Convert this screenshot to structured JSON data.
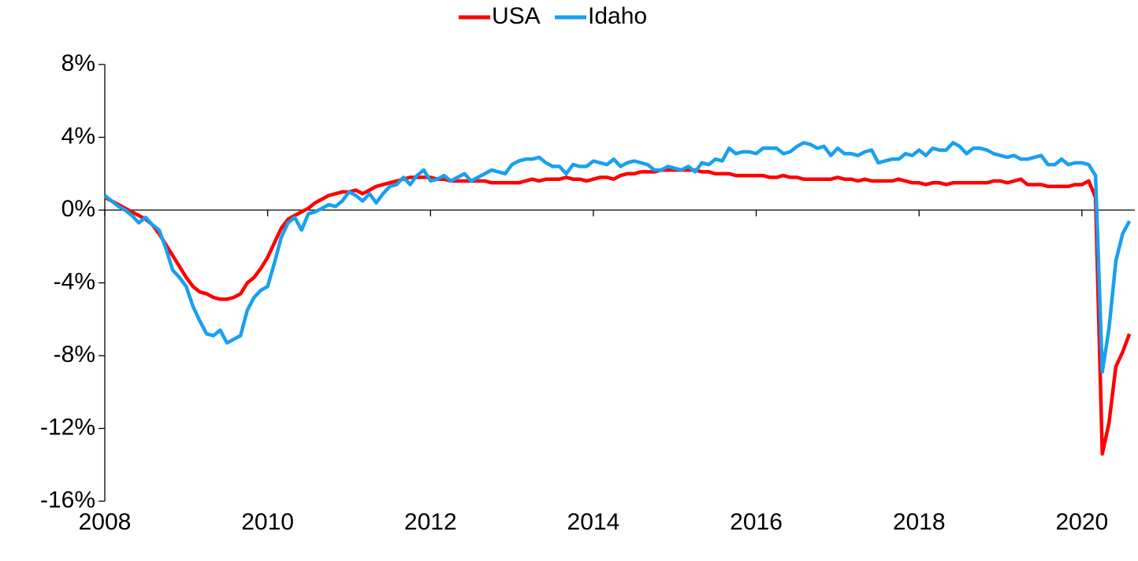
{
  "chart_data": {
    "type": "line",
    "x": [
      2008.0,
      2008.083,
      2008.167,
      2008.25,
      2008.333,
      2008.417,
      2008.5,
      2008.583,
      2008.667,
      2008.75,
      2008.833,
      2008.917,
      2009.0,
      2009.083,
      2009.167,
      2009.25,
      2009.333,
      2009.417,
      2009.5,
      2009.583,
      2009.667,
      2009.75,
      2009.833,
      2009.917,
      2010.0,
      2010.083,
      2010.167,
      2010.25,
      2010.333,
      2010.417,
      2010.5,
      2010.583,
      2010.667,
      2010.75,
      2010.833,
      2010.917,
      2011.0,
      2011.083,
      2011.167,
      2011.25,
      2011.333,
      2011.417,
      2011.5,
      2011.583,
      2011.667,
      2011.75,
      2011.833,
      2011.917,
      2012.0,
      2012.083,
      2012.167,
      2012.25,
      2012.333,
      2012.417,
      2012.5,
      2012.583,
      2012.667,
      2012.75,
      2012.833,
      2012.917,
      2013.0,
      2013.083,
      2013.167,
      2013.25,
      2013.333,
      2013.417,
      2013.5,
      2013.583,
      2013.667,
      2013.75,
      2013.833,
      2013.917,
      2014.0,
      2014.083,
      2014.167,
      2014.25,
      2014.333,
      2014.417,
      2014.5,
      2014.583,
      2014.667,
      2014.75,
      2014.833,
      2014.917,
      2015.0,
      2015.083,
      2015.167,
      2015.25,
      2015.333,
      2015.417,
      2015.5,
      2015.583,
      2015.667,
      2015.75,
      2015.833,
      2015.917,
      2016.0,
      2016.083,
      2016.167,
      2016.25,
      2016.333,
      2016.417,
      2016.5,
      2016.583,
      2016.667,
      2016.75,
      2016.833,
      2016.917,
      2017.0,
      2017.083,
      2017.167,
      2017.25,
      2017.333,
      2017.417,
      2017.5,
      2017.583,
      2017.667,
      2017.75,
      2017.833,
      2017.917,
      2018.0,
      2018.083,
      2018.167,
      2018.25,
      2018.333,
      2018.417,
      2018.5,
      2018.583,
      2018.667,
      2018.75,
      2018.833,
      2018.917,
      2019.0,
      2019.083,
      2019.167,
      2019.25,
      2019.333,
      2019.417,
      2019.5,
      2019.583,
      2019.667,
      2019.75,
      2019.833,
      2019.917,
      2020.0,
      2020.083,
      2020.167,
      2020.25,
      2020.333,
      2020.417,
      2020.5,
      2020.583
    ],
    "series": [
      {
        "name": "USA",
        "color": "#ff0000",
        "values": [
          0.7,
          0.5,
          0.3,
          0.1,
          -0.1,
          -0.3,
          -0.5,
          -0.8,
          -1.3,
          -1.9,
          -2.5,
          -3.1,
          -3.7,
          -4.2,
          -4.5,
          -4.6,
          -4.8,
          -4.9,
          -4.9,
          -4.8,
          -4.6,
          -4.0,
          -3.7,
          -3.2,
          -2.6,
          -1.8,
          -1.0,
          -0.5,
          -0.3,
          -0.1,
          0.1,
          0.4,
          0.6,
          0.8,
          0.9,
          1.0,
          1.0,
          1.1,
          0.9,
          1.1,
          1.3,
          1.4,
          1.5,
          1.6,
          1.7,
          1.8,
          1.8,
          1.8,
          1.8,
          1.7,
          1.7,
          1.6,
          1.6,
          1.6,
          1.6,
          1.6,
          1.6,
          1.5,
          1.5,
          1.5,
          1.5,
          1.5,
          1.6,
          1.7,
          1.6,
          1.7,
          1.7,
          1.7,
          1.8,
          1.7,
          1.7,
          1.6,
          1.7,
          1.8,
          1.8,
          1.7,
          1.9,
          2.0,
          2.0,
          2.1,
          2.1,
          2.1,
          2.2,
          2.2,
          2.2,
          2.2,
          2.2,
          2.2,
          2.1,
          2.1,
          2.0,
          2.0,
          2.0,
          1.9,
          1.9,
          1.9,
          1.9,
          1.9,
          1.8,
          1.8,
          1.9,
          1.8,
          1.8,
          1.7,
          1.7,
          1.7,
          1.7,
          1.7,
          1.8,
          1.7,
          1.7,
          1.6,
          1.7,
          1.6,
          1.6,
          1.6,
          1.6,
          1.7,
          1.6,
          1.5,
          1.5,
          1.4,
          1.5,
          1.5,
          1.4,
          1.5,
          1.5,
          1.5,
          1.5,
          1.5,
          1.5,
          1.6,
          1.6,
          1.5,
          1.6,
          1.7,
          1.4,
          1.4,
          1.4,
          1.3,
          1.3,
          1.3,
          1.3,
          1.4,
          1.4,
          1.6,
          0.7,
          -13.4,
          -11.7,
          -8.6,
          -7.8,
          -6.8
        ]
      },
      {
        "name": "Idaho",
        "color": "#18a0f0",
        "values": [
          0.8,
          0.5,
          0.2,
          0.0,
          -0.3,
          -0.7,
          -0.4,
          -0.8,
          -1.1,
          -2.1,
          -3.3,
          -3.7,
          -4.2,
          -5.3,
          -6.1,
          -6.8,
          -6.9,
          -6.6,
          -7.3,
          -7.1,
          -6.9,
          -5.5,
          -4.8,
          -4.4,
          -4.2,
          -2.9,
          -1.5,
          -0.7,
          -0.4,
          -1.1,
          -0.2,
          -0.1,
          0.1,
          0.3,
          0.2,
          0.5,
          1.0,
          0.8,
          0.5,
          0.9,
          0.4,
          0.9,
          1.3,
          1.4,
          1.8,
          1.4,
          1.9,
          2.2,
          1.6,
          1.7,
          1.9,
          1.6,
          1.8,
          2.0,
          1.6,
          1.8,
          2.0,
          2.2,
          2.1,
          2.0,
          2.5,
          2.7,
          2.8,
          2.8,
          2.9,
          2.6,
          2.4,
          2.4,
          2.0,
          2.5,
          2.4,
          2.4,
          2.7,
          2.6,
          2.5,
          2.8,
          2.4,
          2.6,
          2.7,
          2.6,
          2.5,
          2.2,
          2.2,
          2.4,
          2.3,
          2.2,
          2.4,
          2.1,
          2.6,
          2.5,
          2.8,
          2.7,
          3.4,
          3.1,
          3.2,
          3.2,
          3.1,
          3.4,
          3.4,
          3.4,
          3.1,
          3.2,
          3.5,
          3.7,
          3.6,
          3.4,
          3.5,
          3.0,
          3.4,
          3.1,
          3.1,
          3.0,
          3.2,
          3.3,
          2.6,
          2.7,
          2.8,
          2.8,
          3.1,
          3.0,
          3.3,
          3.0,
          3.4,
          3.3,
          3.3,
          3.7,
          3.5,
          3.1,
          3.4,
          3.4,
          3.3,
          3.1,
          3.0,
          2.9,
          3.0,
          2.8,
          2.8,
          2.9,
          3.0,
          2.5,
          2.5,
          2.8,
          2.5,
          2.6,
          2.6,
          2.5,
          1.9,
          -8.9,
          -6.5,
          -2.8,
          -1.3,
          -0.6
        ]
      }
    ],
    "xlim": [
      2008,
      2020.65
    ],
    "xticks": [
      2008,
      2010,
      2012,
      2014,
      2016,
      2018,
      2020
    ],
    "ylim": [
      -16,
      8
    ],
    "yticks": [
      {
        "value": -16,
        "label": "-16%"
      },
      {
        "value": -12,
        "label": "-12%"
      },
      {
        "value": -8,
        "label": "-8%"
      },
      {
        "value": -4,
        "label": "-4%"
      },
      {
        "value": 0,
        "label": "0%"
      },
      {
        "value": 4,
        "label": "4%"
      },
      {
        "value": 8,
        "label": "8%"
      }
    ],
    "legend": "top"
  }
}
